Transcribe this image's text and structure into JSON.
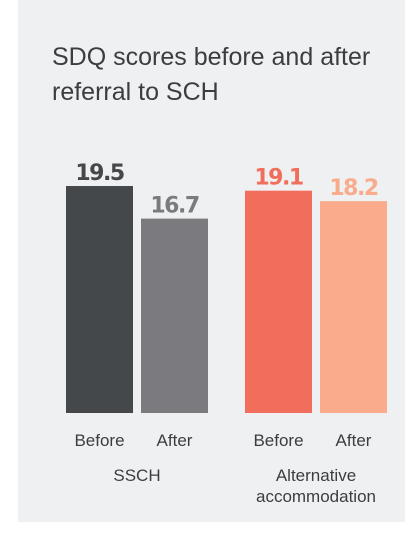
{
  "chart_data": {
    "type": "bar",
    "title": "SDQ scores before and after referral to SCH",
    "groups": [
      {
        "name": "SSCH",
        "categories": [
          "Before",
          "After"
        ],
        "values": [
          19.5,
          16.7
        ],
        "colors": [
          "#45484b",
          "#7b7b7f"
        ]
      },
      {
        "name": "Alternative accommodation",
        "categories": [
          "Before",
          "After"
        ],
        "values": [
          19.1,
          18.2
        ],
        "colors": [
          "#f26e5c",
          "#f9ab8b"
        ]
      }
    ]
  }
}
